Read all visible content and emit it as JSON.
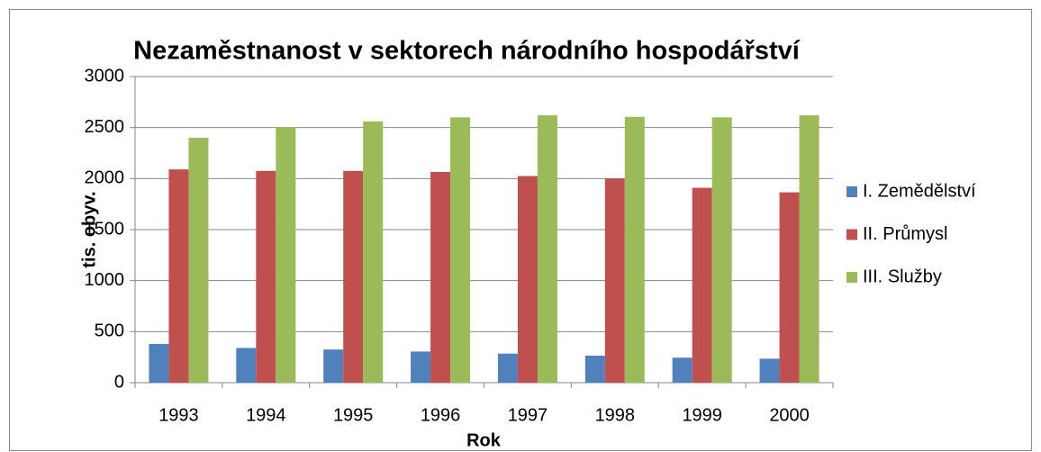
{
  "chart_data": {
    "type": "bar",
    "title": "Nezaměstnanost v sektorech národního hospodářství",
    "x_label": "Rok",
    "y_label": "tis. obyv.",
    "categories": [
      "1993",
      "1994",
      "1995",
      "1996",
      "1997",
      "1998",
      "1999",
      "2000"
    ],
    "series": [
      {
        "name": "I. Zemědělství",
        "color": "#4f81bd",
        "values": [
          380,
          340,
          325,
          305,
          285,
          265,
          245,
          235
        ]
      },
      {
        "name": "II. Průmysl",
        "color": "#c0504d",
        "values": [
          2090,
          2075,
          2075,
          2065,
          2025,
          2000,
          1910,
          1865
        ]
      },
      {
        "name": "III. Služby",
        "color": "#9bbb59",
        "values": [
          2400,
          2505,
          2560,
          2600,
          2620,
          2605,
          2600,
          2620
        ]
      }
    ],
    "ylim": [
      0,
      3000
    ],
    "yticks": [
      0,
      500,
      1000,
      1500,
      2000,
      2500,
      3000
    ],
    "grid": true,
    "legend": "right"
  }
}
